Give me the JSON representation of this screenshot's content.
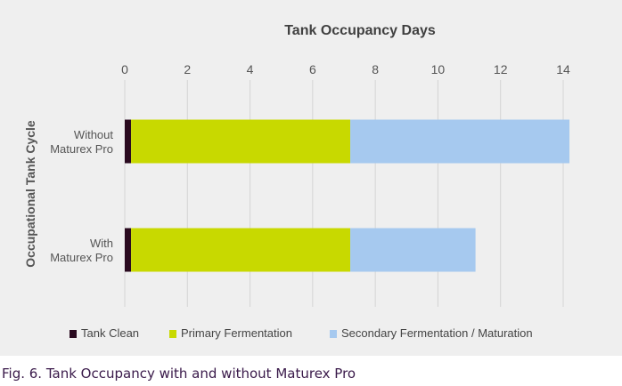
{
  "chart_data": {
    "type": "bar",
    "orientation": "horizontal",
    "stacked": true,
    "title": "Tank Occupancy Days",
    "xlabel": "",
    "ylabel": "Occupational Tank Cycle",
    "xlim": [
      0,
      14
    ],
    "xticks": [
      "0",
      "2",
      "4",
      "6",
      "8",
      "10",
      "12",
      "14"
    ],
    "xaxis_position": "top",
    "grid": true,
    "legend_position": "bottom",
    "categories": [
      "Without Maturex Pro",
      "With Maturex Pro"
    ],
    "category_lines": [
      [
        "Without",
        "Maturex Pro"
      ],
      [
        "With",
        "Maturex Pro"
      ]
    ],
    "series": [
      {
        "name": "Tank Clean",
        "color": "#2a0a1f",
        "values": [
          0.2,
          0.2
        ]
      },
      {
        "name": "Primary Fermentation",
        "color": "#c8d900",
        "values": [
          7.0,
          7.0
        ]
      },
      {
        "name": "Secondary Fermentation / Maturation",
        "color": "#a6c9ef",
        "values": [
          7.0,
          4.0
        ]
      }
    ]
  },
  "caption": "Fig. 6. Tank Occupancy with and without Maturex Pro",
  "colors": {
    "panel_bg": "#efefef",
    "grid": "#d4d4d4",
    "text": "#555555",
    "caption": "#3a1a4a"
  }
}
